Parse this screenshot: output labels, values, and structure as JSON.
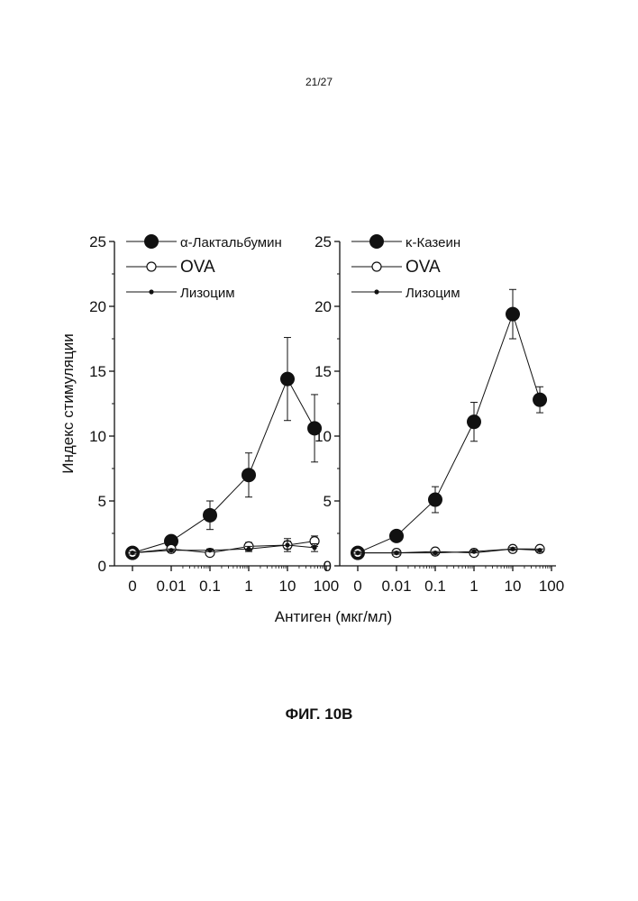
{
  "page_number": "21/27",
  "figure_caption": "ФИГ. 10В",
  "chart_data": {
    "type": "line",
    "ylabel": "Индекс стимуляции",
    "xlabel": "Антиген (мкг/мл)",
    "ylim": [
      0,
      25
    ],
    "y_ticks": [
      "0",
      "5",
      "10",
      "15",
      "20",
      "25"
    ],
    "y_tick_values": [
      0,
      5,
      10,
      15,
      20,
      25
    ],
    "x": [
      0,
      0.01,
      0.1,
      1,
      10,
      50
    ],
    "x_tick_labels": [
      "0",
      "0.01",
      "0.1",
      "1",
      "10",
      "100"
    ],
    "x_tick_values": [
      0,
      0.01,
      0.1,
      1,
      10,
      100
    ],
    "x_scale": "log with zero position",
    "legend_position": "top-left",
    "panels": [
      {
        "series": [
          {
            "name": "α-Лактальбумин",
            "marker": "large-filled-circle",
            "values": [
              1.0,
              1.9,
              3.9,
              7.0,
              14.4,
              10.6
            ],
            "errors": [
              0.1,
              0.2,
              1.1,
              1.7,
              3.2,
              2.6
            ]
          },
          {
            "name": "OVA",
            "marker": "open-circle",
            "values": [
              1.0,
              1.3,
              1.0,
              1.5,
              1.6,
              1.9
            ],
            "errors": [
              0.1,
              0.2,
              0.2,
              0.3,
              0.5,
              0.4
            ]
          },
          {
            "name": "Лизоцим",
            "marker": "small-filled-dot",
            "values": [
              1.0,
              1.2,
              1.2,
              1.3,
              1.6,
              1.4
            ],
            "errors": [
              0.1,
              0.1,
              0.1,
              0.2,
              0.3,
              0.3
            ]
          }
        ]
      },
      {
        "series": [
          {
            "name": "κ-Казеин",
            "marker": "large-filled-circle",
            "values": [
              1.0,
              2.3,
              5.1,
              11.1,
              19.4,
              12.8
            ],
            "errors": [
              0.1,
              0.2,
              1.0,
              1.5,
              1.9,
              1.0
            ]
          },
          {
            "name": "OVA",
            "marker": "open-circle",
            "values": [
              1.0,
              1.0,
              1.1,
              1.0,
              1.3,
              1.3
            ],
            "errors": [
              0.1,
              0.1,
              0.1,
              0.1,
              0.1,
              0.2
            ]
          },
          {
            "name": "Лизоцим",
            "marker": "small-filled-dot",
            "values": [
              1.0,
              1.0,
              1.0,
              1.1,
              1.3,
              1.2
            ],
            "errors": [
              0.1,
              0.1,
              0.1,
              0.1,
              0.1,
              0.1
            ]
          }
        ]
      }
    ]
  }
}
